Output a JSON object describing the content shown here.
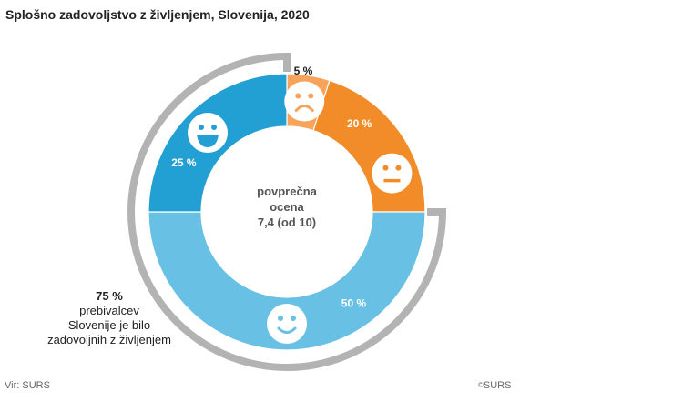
{
  "title": "Splošno zadovoljstvo z življenjem, Slovenija, 2020",
  "center": {
    "line1": "povprečna",
    "line2": "ocena",
    "line3": "7,4 (od 10)"
  },
  "side_note": {
    "value": "75 %",
    "text_lines": [
      "prebivalcev",
      "Slovenije je bilo",
      "zadovoljnih z življenjem"
    ]
  },
  "footer": {
    "source": "Vir: SURS",
    "copyright_symbol": "©",
    "copyright": "SURS"
  },
  "chart_data": {
    "type": "pie",
    "variant": "donut",
    "title": "Splošno zadovoljstvo z življenjem, Slovenija, 2020",
    "center_text": "povprečna ocena 7,4 (od 10)",
    "slices": [
      {
        "name": "nezadovoljni",
        "value": 5,
        "label": "5 %",
        "color": "#f7a35c",
        "icon": "sad-face-icon",
        "label_color": "#222222"
      },
      {
        "name": "niti zadovoljni niti nezadovoljni",
        "value": 20,
        "label": "20 %",
        "color": "#f28c28",
        "icon": "neutral-face-icon",
        "label_color": "#ffffff"
      },
      {
        "name": "zadovoljni",
        "value": 50,
        "label": "50 %",
        "color": "#68c0e4",
        "icon": "smile-face-icon",
        "label_color": "#ffffff"
      },
      {
        "name": "zelo zadovoljni",
        "value": 25,
        "label": "25 %",
        "color": "#229fd3",
        "icon": "big-smile-face-icon",
        "label_color": "#ffffff"
      }
    ],
    "highlight_bracket": {
      "covers": [
        "zadovoljni",
        "zelo zadovoljni"
      ],
      "total": 75,
      "label": "75 %",
      "color": "#b3b3b3"
    },
    "start_angle": "top (12 o'clock)",
    "direction": "clockwise"
  }
}
